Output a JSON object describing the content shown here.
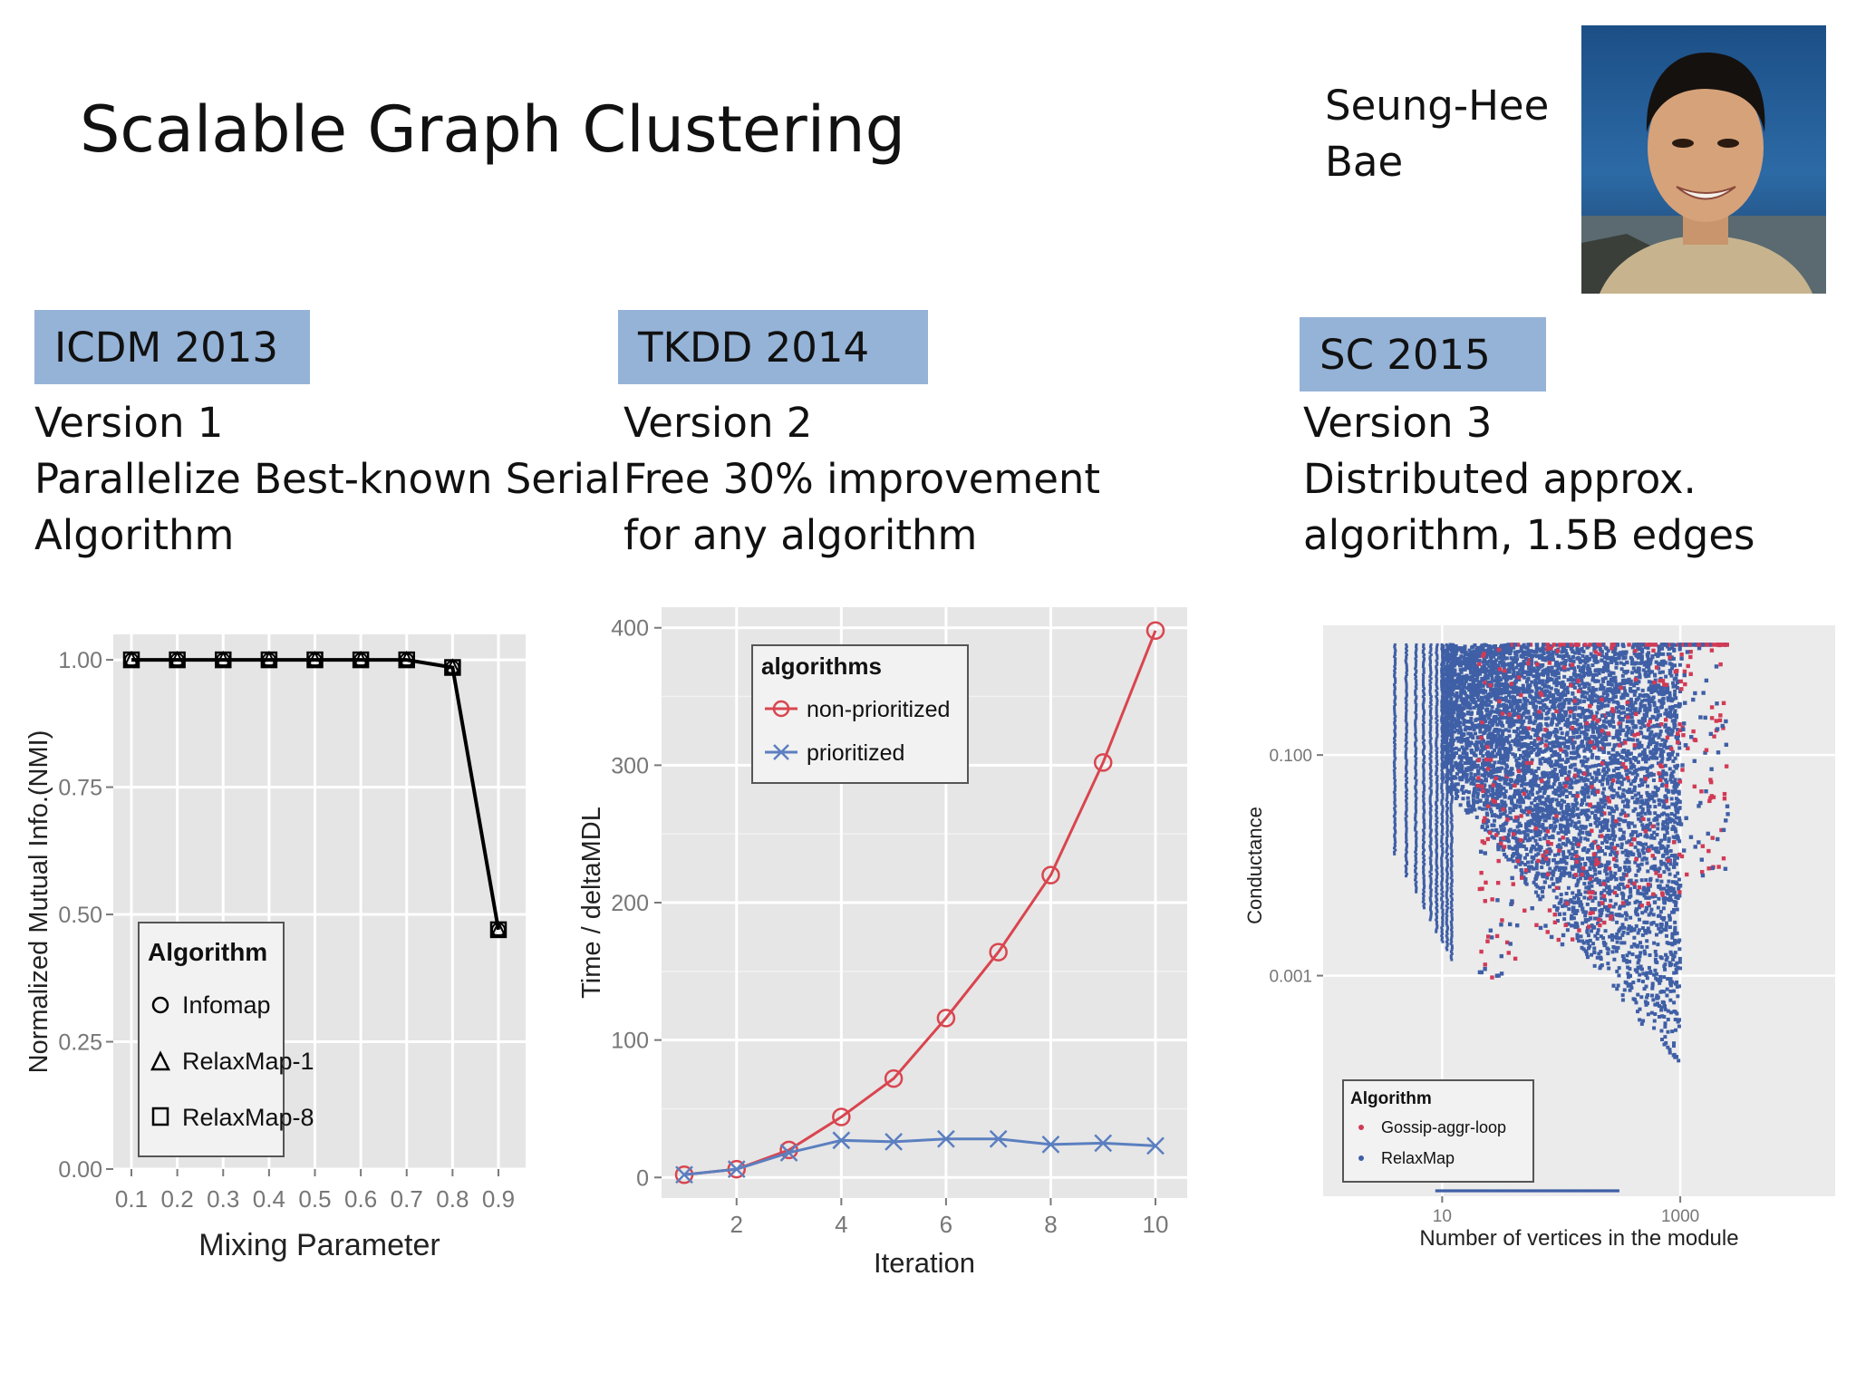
{
  "slide": {
    "title": "Scalable Graph Clustering",
    "person": {
      "name_line1": "Seung-Hee",
      "name_line2": "Bae"
    },
    "versions": [
      {
        "venue": "ICDM 2013",
        "lines": [
          "Version 1",
          "Parallelize Best-known Serial",
          "Algorithm"
        ]
      },
      {
        "venue": "TKDD 2014",
        "lines": [
          "Version 2",
          "Free 30% improvement",
          "for any algorithm"
        ]
      },
      {
        "venue": "SC 2015",
        "lines": [
          "Version 3",
          "Distributed approx.",
          "algorithm, 1.5B edges"
        ]
      }
    ]
  },
  "chart_data": [
    {
      "type": "line",
      "xlabel": "Mixing Parameter",
      "ylabel": "Normalized Mutual Info.(NMI)",
      "x": [
        0.1,
        0.2,
        0.3,
        0.4,
        0.5,
        0.6,
        0.7,
        0.8,
        0.9
      ],
      "xticks": [
        "0.1",
        "0.2",
        "0.3",
        "0.4",
        "0.5",
        "0.6",
        "0.7",
        "0.8",
        "0.9"
      ],
      "yticks": [
        "0.00",
        "0.25",
        "0.50",
        "0.75",
        "1.00"
      ],
      "ylim": [
        0,
        1.05
      ],
      "legend_title": "Algorithm",
      "legend_position": "bottom-left",
      "series": [
        {
          "name": "Infomap",
          "marker": "circle",
          "values": [
            1.0,
            1.0,
            1.0,
            1.0,
            1.0,
            1.0,
            1.0,
            0.985,
            0.47
          ]
        },
        {
          "name": "RelaxMap-1",
          "marker": "triangle",
          "values": [
            1.0,
            1.0,
            1.0,
            1.0,
            1.0,
            1.0,
            1.0,
            0.985,
            0.47
          ]
        },
        {
          "name": "RelaxMap-8",
          "marker": "square",
          "values": [
            1.0,
            1.0,
            1.0,
            1.0,
            1.0,
            1.0,
            1.0,
            0.985,
            0.47
          ]
        }
      ],
      "grid": true
    },
    {
      "type": "line",
      "xlabel": "Iteration",
      "ylabel": "Time / deltaMDL",
      "x": [
        1,
        2,
        3,
        4,
        5,
        6,
        7,
        8,
        9,
        10
      ],
      "xticks": [
        "2",
        "4",
        "6",
        "8",
        "10"
      ],
      "yticks": [
        "0",
        "100",
        "200",
        "300",
        "400"
      ],
      "ylim": [
        -15,
        415
      ],
      "legend_title": "algorithms",
      "legend_position": "top-left",
      "series": [
        {
          "name": "non-prioritized",
          "color": "#d9454f",
          "marker": "circle",
          "values": [
            2,
            6,
            20,
            44,
            72,
            116,
            164,
            220,
            302,
            398
          ]
        },
        {
          "name": "prioritized",
          "color": "#5b7fc0",
          "marker": "x",
          "values": [
            2,
            6,
            18,
            27,
            26,
            28,
            28,
            24,
            25,
            23
          ]
        }
      ],
      "grid": true
    },
    {
      "type": "scatter",
      "xlabel": "Number of vertices in the module",
      "ylabel": "Conductance",
      "xscale": "log",
      "yscale": "log",
      "xticks": [
        "10",
        "1000"
      ],
      "yticks": [
        "0.100",
        "0.001"
      ],
      "xlim": [
        1,
        20000
      ],
      "ylim": [
        1e-05,
        1.5
      ],
      "legend_title": "Algorithm",
      "legend_position": "bottom-left",
      "series": [
        {
          "name": "Gossip-aggr-loop",
          "color": "#d23a55"
        },
        {
          "name": "RelaxMap",
          "color": "#3f5fa6"
        }
      ],
      "grid": true
    }
  ]
}
